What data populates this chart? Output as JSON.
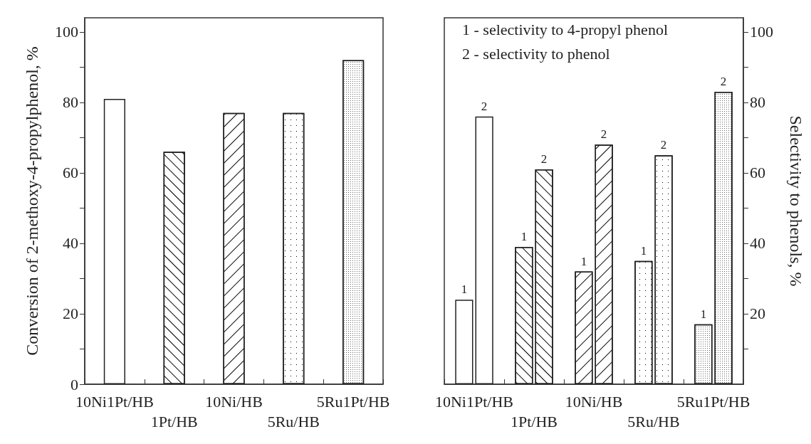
{
  "chart_data": [
    {
      "type": "bar",
      "ylabel": "Conversion of 2-methoxy-4-propylphenol, %",
      "categories": [
        "10Ni1Pt/HB",
        "1Pt/HB",
        "10Ni/HB",
        "5Ru/HB",
        "5Ru1Pt/HB"
      ],
      "series": [
        {
          "color": "#ffffff",
          "values": [
            81,
            66,
            77,
            77,
            92
          ]
        }
      ],
      "ylim": [
        0,
        104
      ],
      "yticks": [
        0,
        {
          "value": 10,
          "label": null
        },
        20,
        {
          "value": 30,
          "label": null
        },
        40,
        {
          "value": 50,
          "label": null
        },
        60,
        {
          "value": 70,
          "label": null
        },
        80,
        {
          "value": 90,
          "label": null
        },
        100
      ],
      "grid": false,
      "legend": false
    },
    {
      "type": "bar",
      "y2label": "Selectivity to phenols, %",
      "categories": [
        "10Ni1Pt/HB",
        "1Pt/HB",
        "10Ni/HB",
        "5Ru/HB",
        "5Ru1Pt/HB"
      ],
      "annotations": [
        "1 - selectivity to 4-propyl phenol",
        "2 - selectivity to phenol"
      ],
      "series": [
        {
          "name": "1",
          "color": "#ffffff",
          "axis": "y2",
          "values": [
            24,
            39,
            32,
            35,
            17
          ]
        },
        {
          "name": "2",
          "color": "#ffffff",
          "axis": "y2",
          "values": [
            76,
            61,
            68,
            65,
            83
          ]
        }
      ],
      "y2lim": [
        0,
        104
      ],
      "y2ticks": [
        {
          "value": 10,
          "label": null
        },
        20,
        {
          "value": 30,
          "label": null
        },
        40,
        {
          "value": 50,
          "label": null
        },
        60,
        {
          "value": 70,
          "label": null
        },
        80,
        {
          "value": 90,
          "label": null
        },
        100
      ],
      "grid": false,
      "legend": false
    }
  ]
}
